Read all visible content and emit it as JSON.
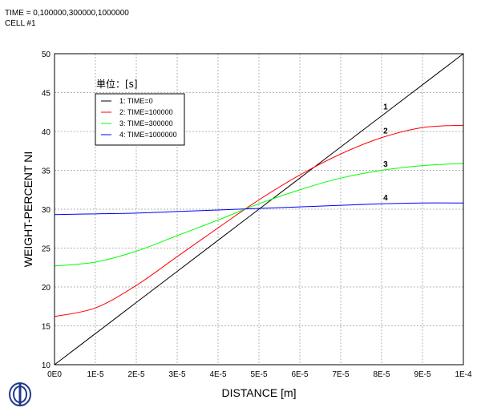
{
  "header": {
    "line1": "TIME = 0,100000,300000,1000000",
    "line2": "CELL #1"
  },
  "chart_data": {
    "type": "line",
    "title": "",
    "xlabel": "DISTANCE [m]",
    "ylabel": "WEIGHT-PERCENT NI",
    "xlim": [
      0,
      0.0001
    ],
    "ylim": [
      10,
      50
    ],
    "grid": true,
    "x_ticks": [
      0,
      1e-05,
      2e-05,
      3e-05,
      4e-05,
      5e-05,
      6e-05,
      7e-05,
      8e-05,
      9e-05,
      0.0001
    ],
    "x_tick_labels": [
      "0E0",
      "1E-5",
      "2E-5",
      "3E-5",
      "4E-5",
      "5E-5",
      "6E-5",
      "7E-5",
      "8E-5",
      "9E-5",
      "1E-4"
    ],
    "y_ticks": [
      10,
      15,
      20,
      25,
      30,
      35,
      40,
      45,
      50
    ],
    "y_tick_labels": [
      "10",
      "15",
      "20",
      "25",
      "30",
      "35",
      "40",
      "45",
      "50"
    ],
    "legend": {
      "title": "単位：[s]",
      "position": "top-left",
      "entries": [
        "1:  TIME=0",
        "2:  TIME=100000",
        "3:  TIME=300000",
        "4:  TIME=1000000"
      ]
    },
    "x": [
      0,
      1e-05,
      2e-05,
      3e-05,
      4e-05,
      5e-05,
      6e-05,
      7e-05,
      8e-05,
      9e-05,
      0.0001
    ],
    "series": [
      {
        "name": "1:  TIME=0",
        "label": "1",
        "color": "#000000",
        "values": [
          10,
          14,
          18,
          22,
          26,
          30,
          34,
          38,
          42,
          46,
          50
        ]
      },
      {
        "name": "2:  TIME=100000",
        "label": "2",
        "color": "#ff0000",
        "values": [
          16.2,
          17.3,
          20.2,
          23.9,
          27.6,
          31.2,
          34.4,
          37.1,
          39.2,
          40.5,
          40.8
        ]
      },
      {
        "name": "3:  TIME=300000",
        "label": "3",
        "color": "#00ff00",
        "values": [
          22.7,
          23.2,
          24.6,
          26.6,
          28.6,
          30.7,
          32.5,
          34.0,
          35.0,
          35.6,
          35.9
        ]
      },
      {
        "name": "4:  TIME=1000000",
        "label": "4",
        "color": "#0000ff",
        "values": [
          29.3,
          29.4,
          29.5,
          29.7,
          29.9,
          30.1,
          30.3,
          30.5,
          30.7,
          30.8,
          30.8
        ]
      }
    ]
  },
  "logo": {
    "icon": "institution-logo-icon"
  }
}
